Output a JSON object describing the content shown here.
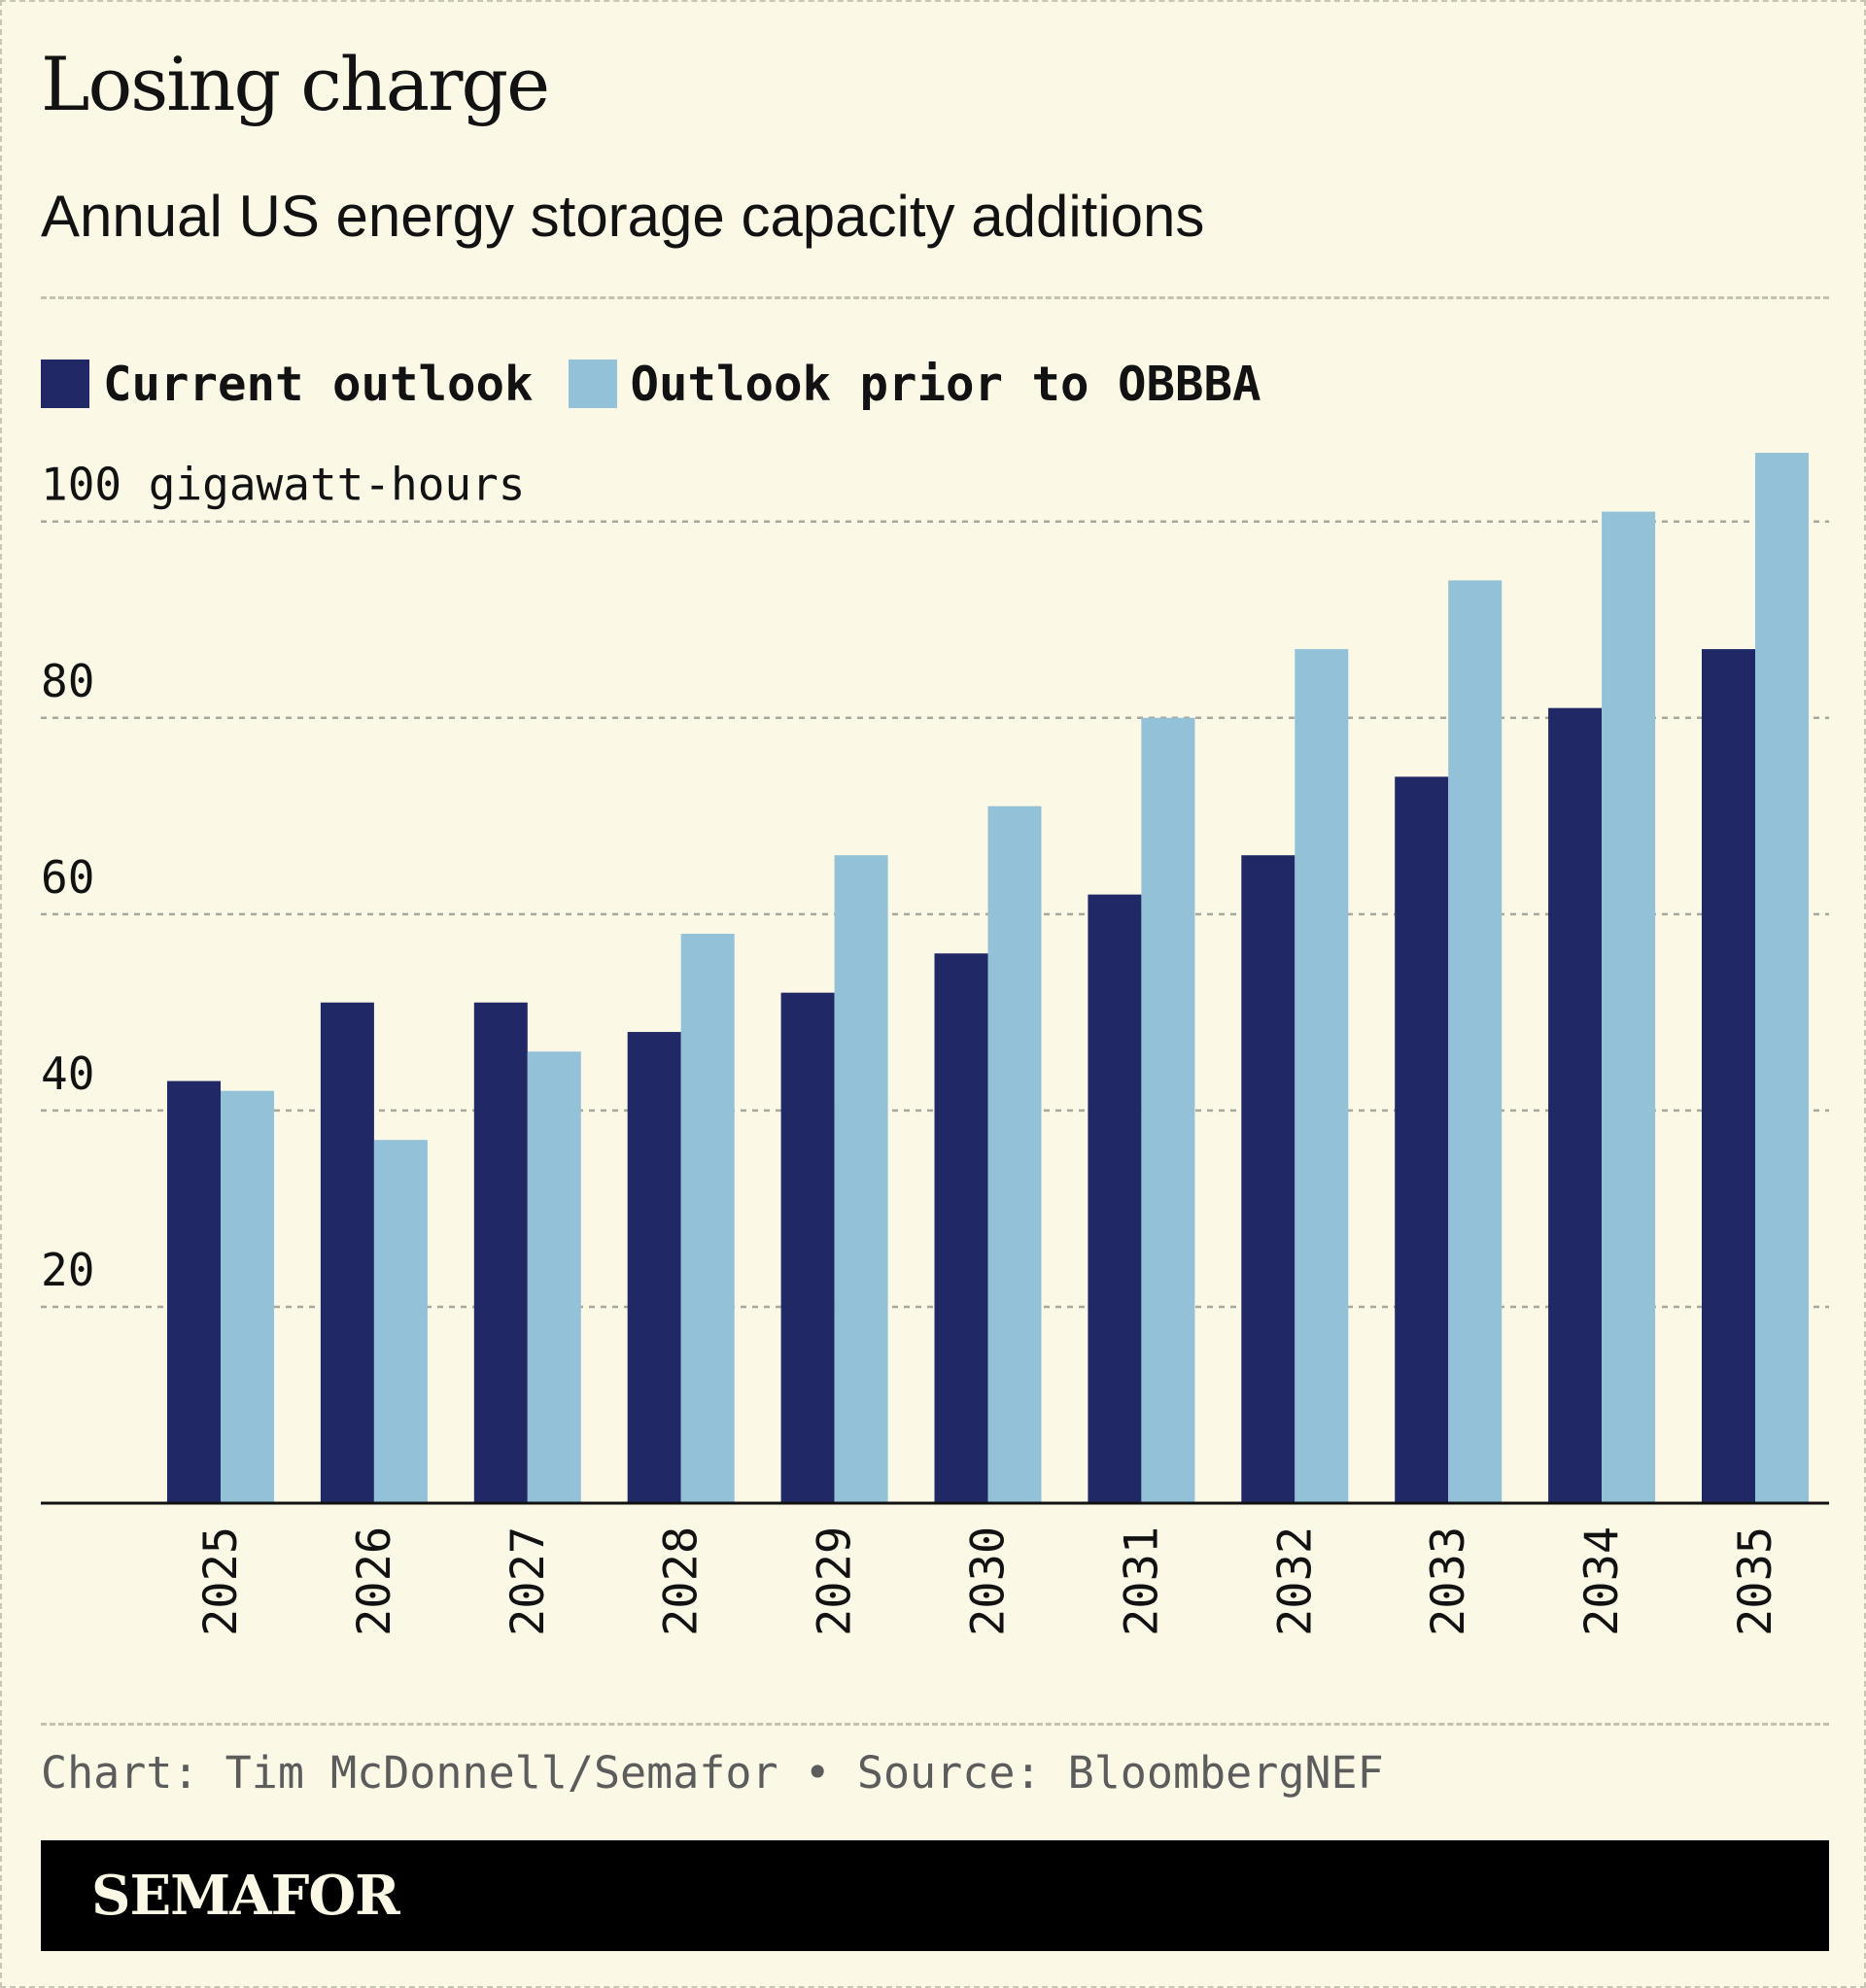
{
  "header": {
    "title": "Losing charge",
    "subtitle": "Annual US energy storage capacity additions"
  },
  "legend": [
    {
      "label": "Current outlook",
      "color": "#202966"
    },
    {
      "label": "Outlook prior to OBBBA",
      "color": "#92c1d8"
    }
  ],
  "chart_data": {
    "type": "bar",
    "title": "Losing charge",
    "subtitle": "Annual US energy storage capacity additions",
    "xlabel": "",
    "ylabel": "",
    "unit_label": "100 gigawatt-hours",
    "categories": [
      "2025",
      "2026",
      "2027",
      "2028",
      "2029",
      "2030",
      "2031",
      "2032",
      "2033",
      "2034",
      "2035"
    ],
    "series": [
      {
        "name": "Current outlook",
        "color": "#202966",
        "values": [
          43,
          51,
          51,
          48,
          52,
          56,
          62,
          66,
          74,
          81,
          87
        ]
      },
      {
        "name": "Outlook prior to OBBBA",
        "color": "#92c1d8",
        "values": [
          42,
          37,
          46,
          58,
          66,
          71,
          80,
          87,
          94,
          101,
          107
        ]
      }
    ],
    "ylim": [
      0,
      107
    ],
    "yticks": [
      20,
      40,
      60,
      80,
      100
    ],
    "ytick_labels": [
      "20",
      "40",
      "60",
      "80",
      "100 gigawatt-hours"
    ],
    "grid": true,
    "legend_position": "top-left"
  },
  "footer": {
    "source": "Chart: Tim McDonnell/Semafor • Source: BloombergNEF",
    "brand": "SEMAFOR"
  }
}
